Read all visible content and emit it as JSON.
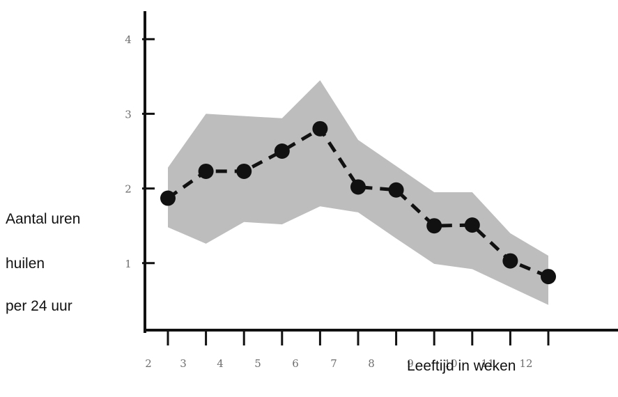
{
  "chart_data": {
    "type": "line",
    "title": "",
    "ylabel_lines": [
      "Aantal uren",
      "huilen",
      "per 24 uur"
    ],
    "xlabel": "Leeftijd in weken",
    "x_ticks": [
      "2",
      "3",
      "4",
      "5",
      "6",
      "7",
      "8",
      "9",
      "10",
      "11",
      "12"
    ],
    "y_ticks": [
      "1",
      "2",
      "3",
      "4"
    ],
    "series": [
      {
        "x": [
          2,
          3,
          4,
          5,
          6,
          7,
          8,
          9,
          10,
          11,
          12
        ],
        "y": [
          1.87,
          2.23,
          2.23,
          2.5,
          2.8,
          2.02,
          1.98,
          1.5,
          1.51,
          1.03,
          0.82
        ]
      }
    ],
    "band": {
      "upper": [
        2.28,
        3.0,
        2.97,
        2.94,
        3.45,
        2.65,
        2.3,
        1.95,
        1.95,
        1.4,
        1.1
      ],
      "lower": [
        1.48,
        1.26,
        1.55,
        1.52,
        1.76,
        1.68,
        1.33,
        0.99,
        0.92,
        0.68,
        0.44
      ]
    },
    "xlim": [
      2,
      12
    ],
    "ylim": [
      0,
      4
    ],
    "grid": false,
    "colors": {
      "line": "#111111",
      "marker": "#111111",
      "band": "#bdbdbd",
      "axis": "#111111",
      "tick_label": "#6e6e6e"
    }
  }
}
